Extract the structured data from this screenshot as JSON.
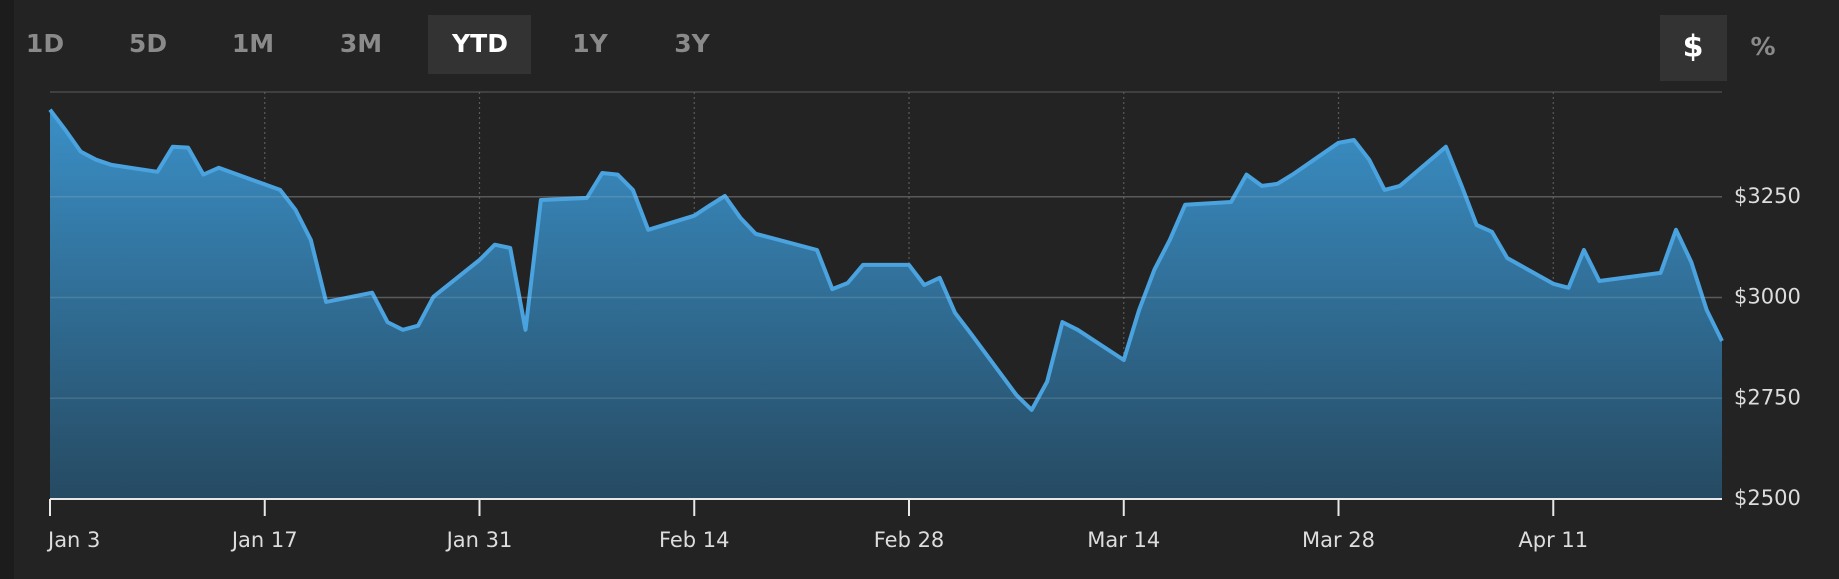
{
  "controls": {
    "ranges": [
      "1D",
      "5D",
      "1M",
      "3M",
      "YTD",
      "1Y",
      "3Y"
    ],
    "selected_range": "YTD",
    "units": [
      "$",
      "%"
    ],
    "selected_unit": "$"
  },
  "chart_data": {
    "type": "area",
    "x": [
      "Jan 3",
      "Jan 4",
      "Jan 5",
      "Jan 6",
      "Jan 7",
      "Jan 10",
      "Jan 11",
      "Jan 12",
      "Jan 13",
      "Jan 14",
      "Jan 18",
      "Jan 19",
      "Jan 20",
      "Jan 21",
      "Jan 24",
      "Jan 25",
      "Jan 26",
      "Jan 27",
      "Jan 28",
      "Jan 31",
      "Feb 1",
      "Feb 2",
      "Feb 3",
      "Feb 4",
      "Feb 7",
      "Feb 8",
      "Feb 9",
      "Feb 10",
      "Feb 11",
      "Feb 14",
      "Feb 15",
      "Feb 16",
      "Feb 17",
      "Feb 18",
      "Feb 22",
      "Feb 23",
      "Feb 24",
      "Feb 25",
      "Feb 28",
      "Mar 1",
      "Mar 2",
      "Mar 3",
      "Mar 4",
      "Mar 7",
      "Mar 8",
      "Mar 9",
      "Mar 10",
      "Mar 11",
      "Mar 14",
      "Mar 15",
      "Mar 16",
      "Mar 17",
      "Mar 18",
      "Mar 21",
      "Mar 22",
      "Mar 23",
      "Mar 24",
      "Mar 25",
      "Mar 28",
      "Mar 29",
      "Mar 30",
      "Mar 31",
      "Apr 1",
      "Apr 4",
      "Apr 5",
      "Apr 6",
      "Apr 7",
      "Apr 8",
      "Apr 11",
      "Apr 12",
      "Apr 13",
      "Apr 14",
      "Apr 18",
      "Apr 19",
      "Apr 20",
      "Apr 21",
      "Apr 22"
    ],
    "values": [
      3466,
      3416,
      3362,
      3342,
      3329,
      3312,
      3374,
      3372,
      3305,
      3322,
      3267,
      3218,
      3143,
      2989,
      3012,
      2939,
      2920,
      2930,
      3002,
      3093,
      3131,
      3123,
      2920,
      3242,
      3247,
      3309,
      3305,
      3267,
      3168,
      3203,
      3228,
      3252,
      3198,
      3158,
      3118,
      3021,
      3036,
      3081,
      3081,
      3031,
      3049,
      2962,
      2912,
      2758,
      2721,
      2791,
      2939,
      2920,
      2845,
      2969,
      3069,
      3143,
      3230,
      3237,
      3305,
      3277,
      3282,
      3305,
      3384,
      3391,
      3342,
      3267,
      3277,
      3374,
      3280,
      3180,
      3163,
      3098,
      3034,
      3024,
      3118,
      3041,
      3061,
      3168,
      3088,
      2969,
      2892
    ],
    "color": "#4aa3df",
    "xlim": [
      "Jan 3",
      "Apr 22"
    ],
    "xticks": [
      "Jan 3",
      "Jan 17",
      "Jan 31",
      "Feb 14",
      "Feb 28",
      "Mar 14",
      "Mar 28",
      "Apr 11"
    ],
    "ylim": [
      2500,
      3510
    ],
    "yticks": [
      {
        "value": 2500,
        "label": "$2500"
      },
      {
        "value": 2750,
        "label": "$2750"
      },
      {
        "value": 3000,
        "label": "$3000"
      },
      {
        "value": 3250,
        "label": "$3250"
      }
    ],
    "grid": true
  }
}
